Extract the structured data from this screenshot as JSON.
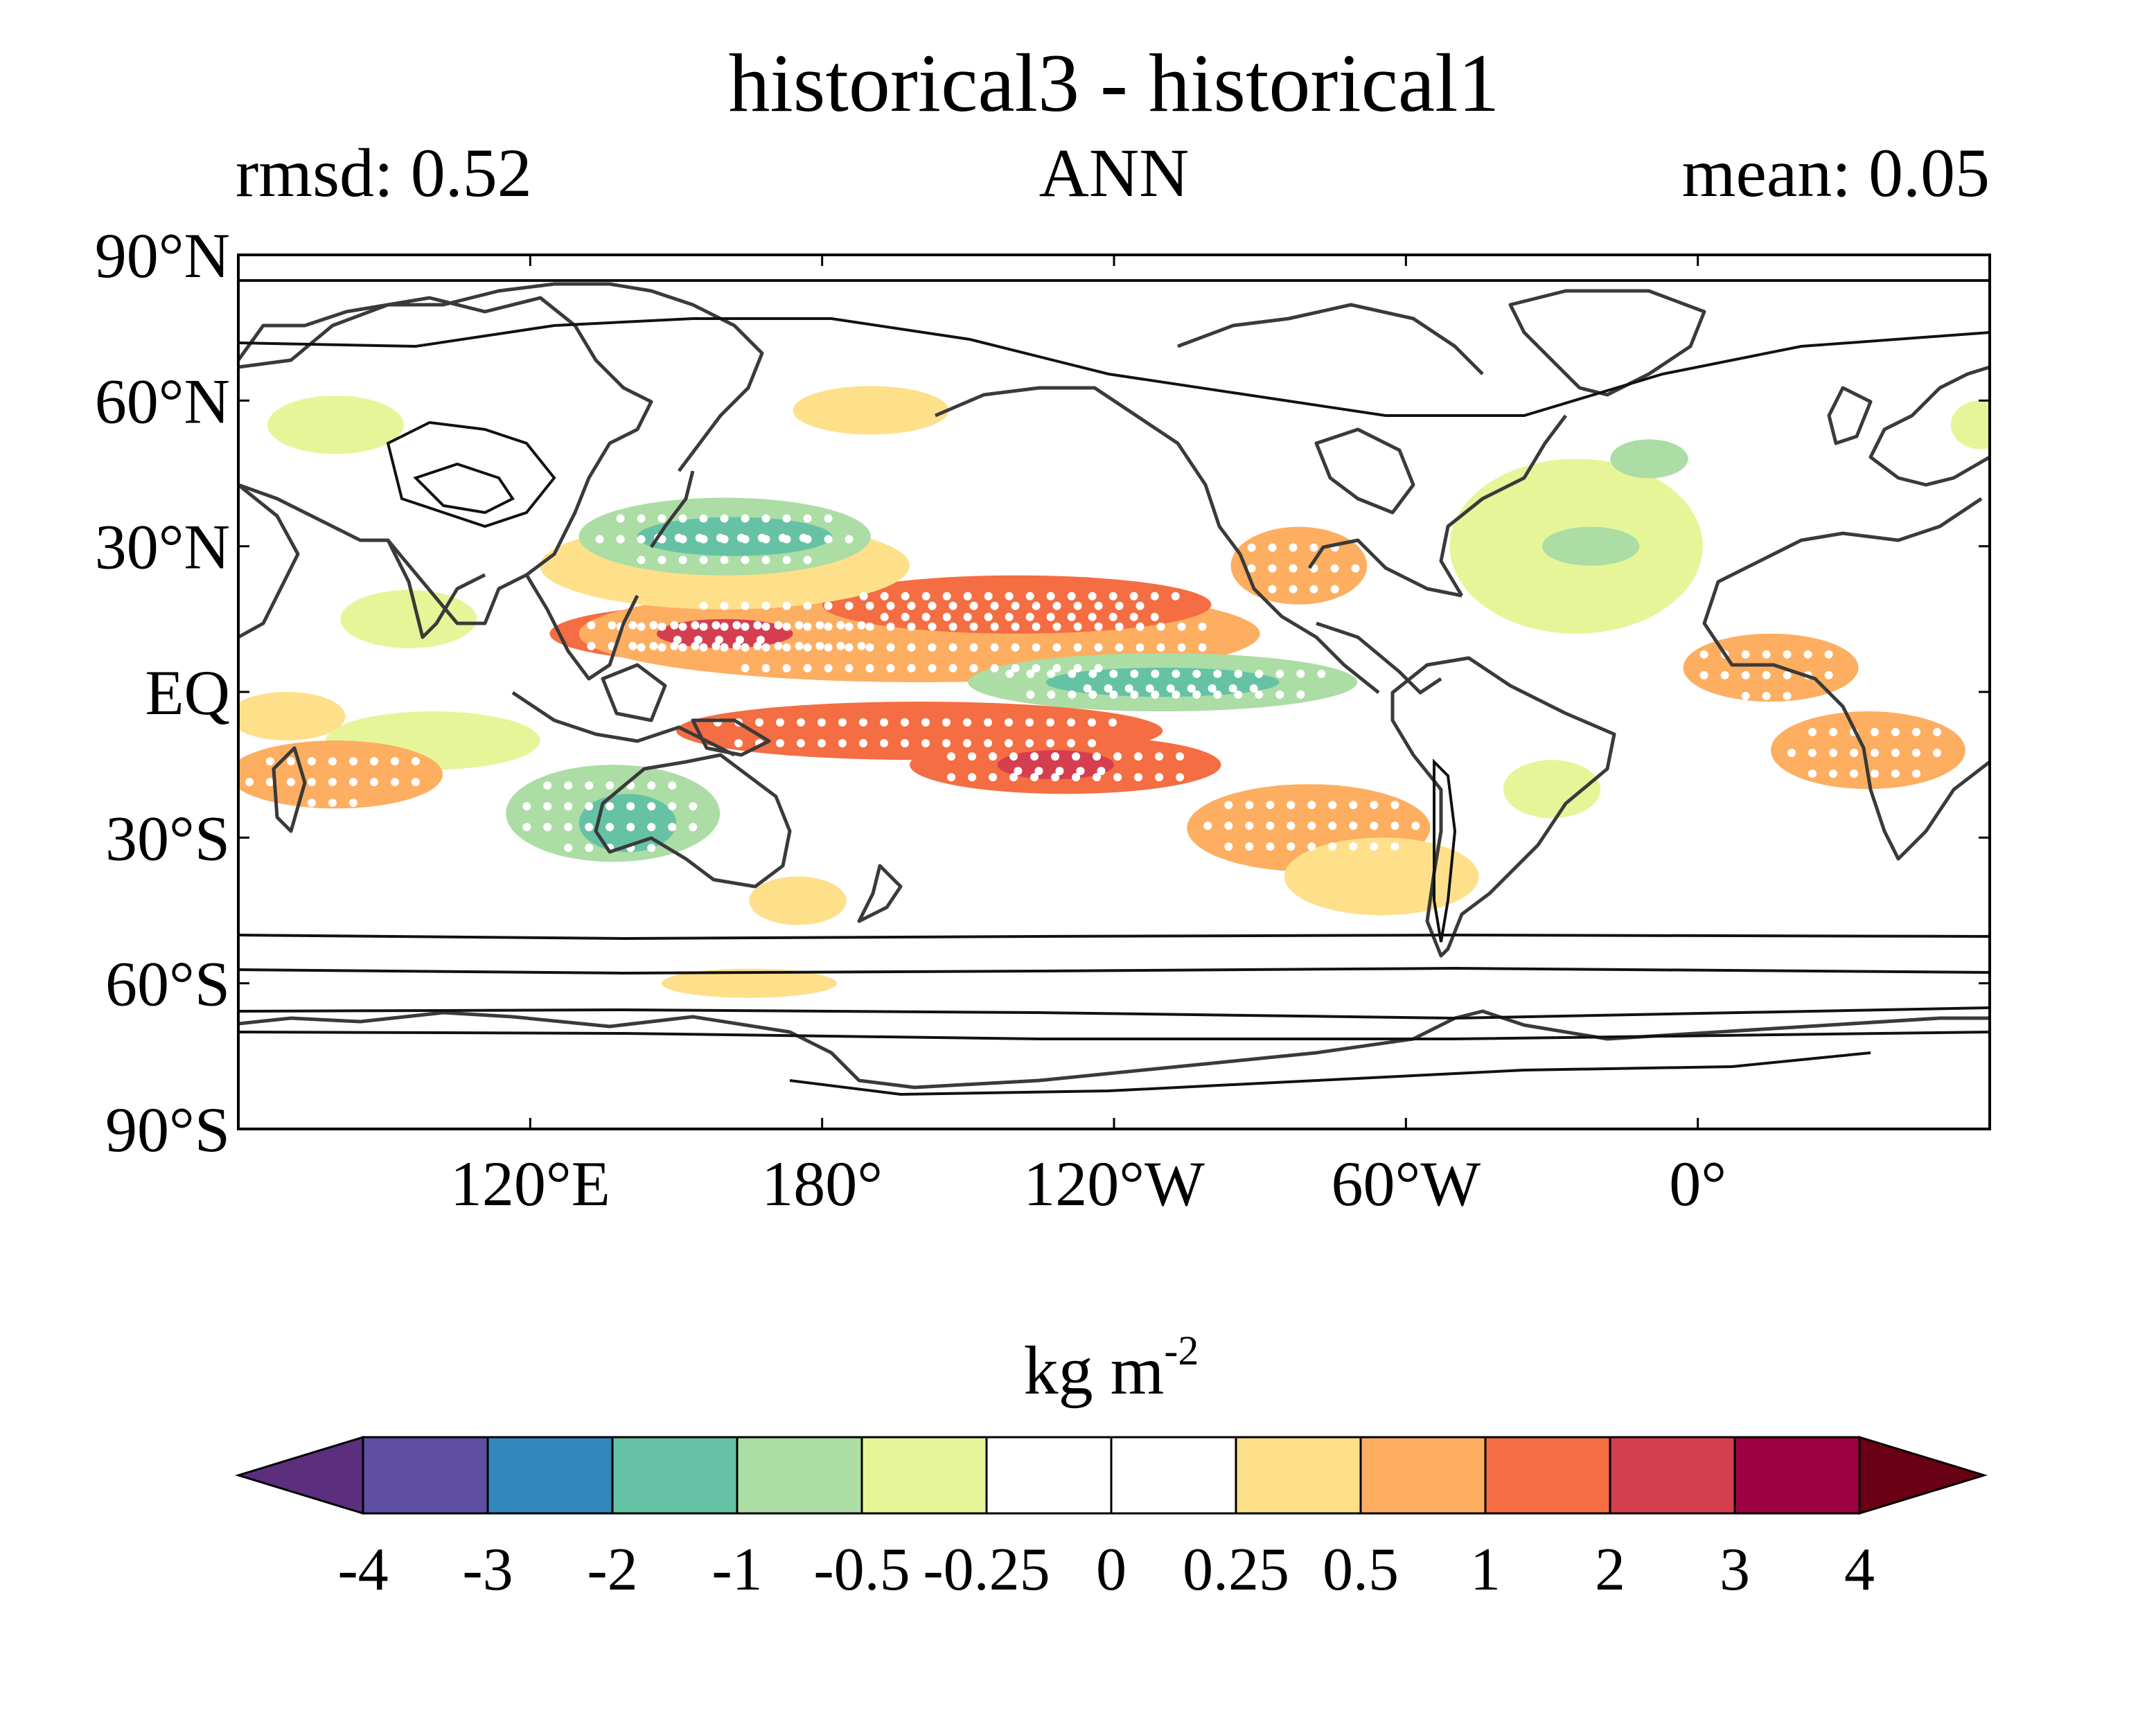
{
  "figure": {
    "title": "historical3 - historical1",
    "left_label": "rmsd: 0.52",
    "center_label": "ANN",
    "right_label": "mean: 0.05"
  },
  "map": {
    "projection": "equirectangular (Pacific-centered)",
    "lon_range": [
      60,
      420
    ],
    "lat_range": [
      -90,
      90
    ],
    "lat_ticks": [
      {
        "value": 90,
        "label": "90°N"
      },
      {
        "value": 60,
        "label": "60°N"
      },
      {
        "value": 30,
        "label": "30°N"
      },
      {
        "value": 0,
        "label": "EQ"
      },
      {
        "value": -30,
        "label": "30°S"
      },
      {
        "value": -60,
        "label": "60°S"
      },
      {
        "value": -90,
        "label": "90°S"
      }
    ],
    "lon_ticks": [
      {
        "value": 120,
        "label": "120°E"
      },
      {
        "value": 180,
        "label": "180°"
      },
      {
        "value": 240,
        "label": "120°W"
      },
      {
        "value": 300,
        "label": "60°W"
      },
      {
        "value": 360,
        "label": "0°"
      }
    ],
    "stippling": "white dots mark significant regions",
    "anomaly_patches": [
      {
        "level": 1.5,
        "lon": 160,
        "lat": 12,
        "dlon": 36,
        "dlat": 6
      },
      {
        "level": 0.75,
        "lon": 200,
        "lat": 12,
        "dlon": 70,
        "dlat": 10
      },
      {
        "level": 1.5,
        "lon": 220,
        "lat": 18,
        "dlon": 40,
        "dlat": 6
      },
      {
        "level": 1.5,
        "lon": 200,
        "lat": -8,
        "dlon": 50,
        "dlat": 6
      },
      {
        "level": 1.5,
        "lon": 230,
        "lat": -15,
        "dlon": 32,
        "dlat": 6
      },
      {
        "level": 2.5,
        "lon": 160,
        "lat": 12,
        "dlon": 14,
        "dlat": 3
      },
      {
        "level": 2.5,
        "lon": 228,
        "lat": -15,
        "dlon": 12,
        "dlat": 3
      },
      {
        "level": 0.375,
        "lon": 160,
        "lat": 26,
        "dlon": 38,
        "dlat": 9
      },
      {
        "level": -0.75,
        "lon": 160,
        "lat": 32,
        "dlon": 30,
        "dlat": 8
      },
      {
        "level": -1.5,
        "lon": 162,
        "lat": 32,
        "dlon": 20,
        "dlat": 4
      },
      {
        "level": -0.75,
        "lon": 250,
        "lat": 2,
        "dlon": 40,
        "dlat": 6
      },
      {
        "level": -1.5,
        "lon": 250,
        "lat": 2,
        "dlon": 24,
        "dlat": 3
      },
      {
        "level": -0.75,
        "lon": 137,
        "lat": -25,
        "dlon": 22,
        "dlat": 10
      },
      {
        "level": -1.5,
        "lon": 140,
        "lat": -27,
        "dlon": 10,
        "dlat": 6
      },
      {
        "level": -0.375,
        "lon": 100,
        "lat": -10,
        "dlon": 22,
        "dlat": 6
      },
      {
        "level": 0.75,
        "lon": 80,
        "lat": -17,
        "dlon": 22,
        "dlat": 7
      },
      {
        "level": 0.375,
        "lon": 70,
        "lat": -5,
        "dlon": 12,
        "dlat": 5
      },
      {
        "level": 0.75,
        "lon": 280,
        "lat": -28,
        "dlon": 25,
        "dlat": 9
      },
      {
        "level": 0.375,
        "lon": 295,
        "lat": -38,
        "dlon": 20,
        "dlat": 8
      },
      {
        "level": 0.75,
        "lon": 278,
        "lat": 26,
        "dlon": 14,
        "dlat": 8
      },
      {
        "level": -0.375,
        "lon": 335,
        "lat": 30,
        "dlon": 26,
        "dlat": 18
      },
      {
        "level": -0.75,
        "lon": 338,
        "lat": 30,
        "dlon": 10,
        "dlat": 4
      },
      {
        "level": -0.75,
        "lon": 350,
        "lat": 48,
        "dlon": 8,
        "dlat": 4
      },
      {
        "level": 0.75,
        "lon": 375,
        "lat": 5,
        "dlon": 18,
        "dlat": 7
      },
      {
        "level": 0.75,
        "lon": 395,
        "lat": -12,
        "dlon": 20,
        "dlat": 8
      },
      {
        "level": 0.375,
        "lon": 175,
        "lat": -43,
        "dlon": 10,
        "dlat": 5
      },
      {
        "level": 0.375,
        "lon": 165,
        "lat": -60,
        "dlon": 18,
        "dlat": 3
      },
      {
        "level": 0.375,
        "lon": 190,
        "lat": 58,
        "dlon": 16,
        "dlat": 5
      },
      {
        "level": -0.375,
        "lon": 80,
        "lat": 55,
        "dlon": 14,
        "dlat": 6
      },
      {
        "level": -0.375,
        "lon": 418,
        "lat": 55,
        "dlon": 6,
        "dlat": 5
      },
      {
        "level": -0.375,
        "lon": 95,
        "lat": 15,
        "dlon": 14,
        "dlat": 6
      },
      {
        "level": -0.375,
        "lon": 330,
        "lat": -20,
        "dlon": 10,
        "dlat": 6
      }
    ]
  },
  "colorbar": {
    "units": "kg m",
    "units_exp": "-2",
    "boundaries": [
      "-4",
      "-3",
      "-2",
      "-1",
      "-0.5",
      "-0.25",
      "0",
      "0.25",
      "0.5",
      "1",
      "2",
      "3",
      "4"
    ],
    "bin_colors": [
      "#5e4fa2",
      "#3288bd",
      "#66c2a5",
      "#abdda4",
      "#e6f598",
      "#ffffff",
      "#ffffff",
      "#fee08b",
      "#fdae61",
      "#f46d43",
      "#d53e4f",
      "#9e0142"
    ],
    "under_color": "#5b2f7d",
    "over_color": "#6a0013",
    "orientation": "horizontal",
    "extend": "both"
  }
}
